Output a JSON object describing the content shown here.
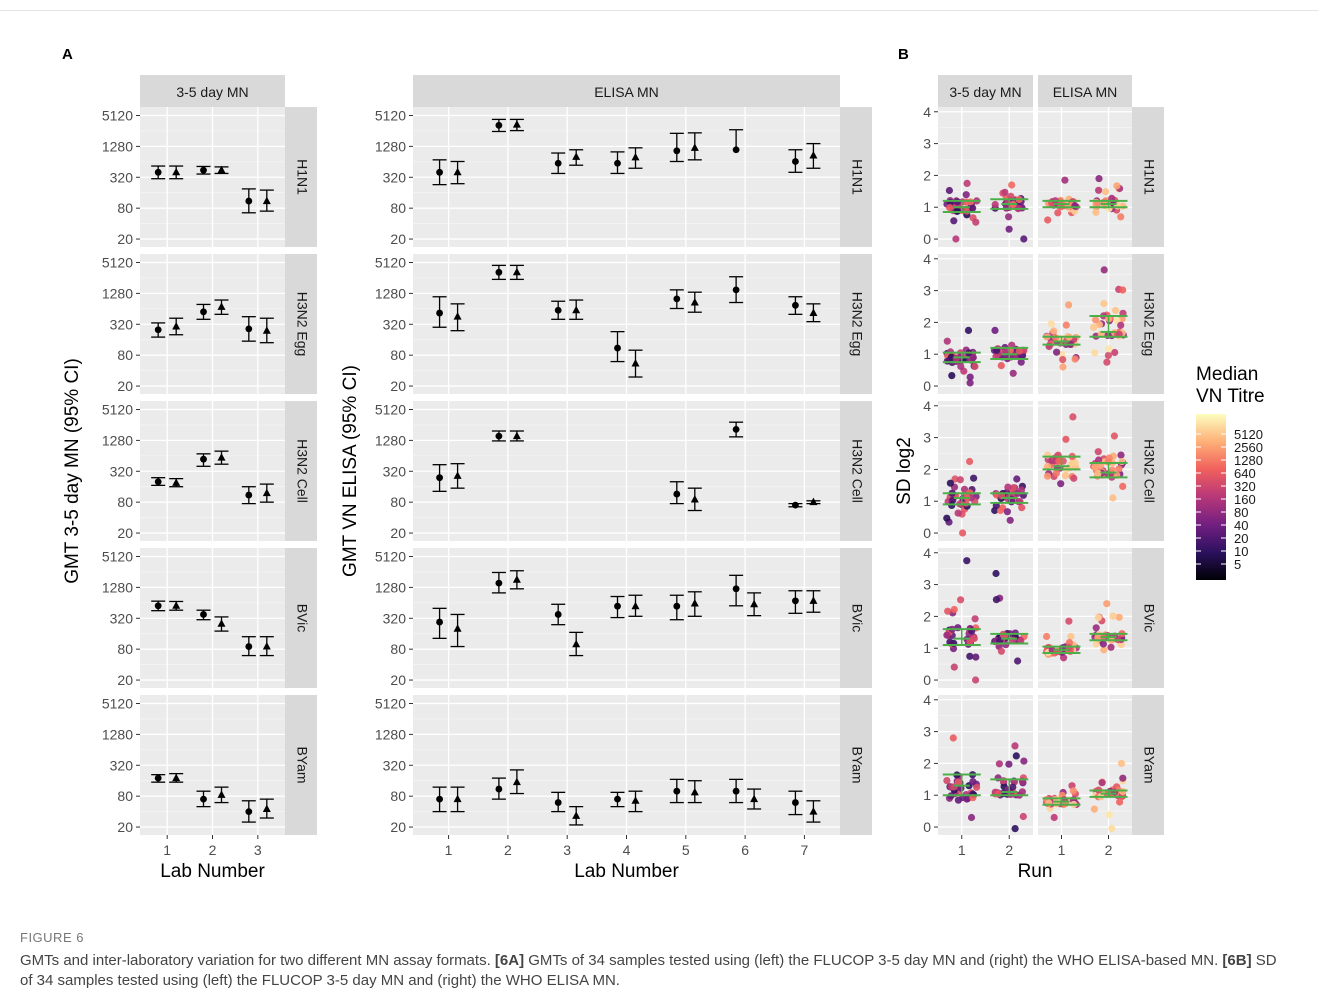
{
  "figure": {
    "panel_a_label": "A",
    "panel_b_label": "B",
    "caption_label": "FIGURE 6",
    "caption_parts": [
      {
        "text": "GMTs and inter-laboratory variation for two different MN assay formats. ",
        "bold": false
      },
      {
        "text": "[6A]",
        "bold": true
      },
      {
        "text": " GMTs of 34 samples tested using (left) the FLUCOP 3-5 day MN and (right) the WHO ELISA-based MN. ",
        "bold": false
      },
      {
        "text": "[6B]",
        "bold": true
      },
      {
        "text": " SD of 34 samples tested using (left) the FLUCOP 3-5 day MN and (right) the WHO ELISA MN.",
        "bold": false
      }
    ]
  },
  "chart_data": [
    {
      "type": "scatter",
      "panel": "A",
      "description": "Point estimates with 95% CI error bars; circle and triangle markers for two series per lab",
      "column_strips": [
        "3-5 day MN",
        "ELISA MN"
      ],
      "row_strips": [
        "H1N1",
        "H3N2 Egg",
        "H3N2 Cell",
        "BVic",
        "BYam"
      ],
      "ylabels": [
        "GMT 3-5 day MN (95% CI)",
        "GMT VN ELISA (95% CI)"
      ],
      "xlabel": "Lab Number",
      "y_scale": "log2",
      "y_ticks": [
        20,
        80,
        320,
        1280,
        5120
      ],
      "ylim": [
        14,
        7500
      ],
      "marker_series": [
        "circle",
        "triangle"
      ],
      "facets": {
        "3-5 day MN": {
          "labs": [
            1,
            2,
            3
          ],
          "H1N1": {
            "circle": [
              [
                400,
                300,
                530
              ],
              [
                440,
                370,
                520
              ],
              [
                110,
                65,
                190
              ]
            ],
            "triangle": [
              [
                400,
                300,
                530
              ],
              [
                440,
                380,
                510
              ],
              [
                110,
                70,
                180
              ]
            ]
          },
          "H3N2 Egg": {
            "circle": [
              [
                250,
                180,
                340
              ],
              [
                560,
                400,
                780
              ],
              [
                260,
                150,
                450
              ]
            ],
            "triangle": [
              [
                290,
                200,
                420
              ],
              [
                700,
                500,
                950
              ],
              [
                240,
                140,
                420
              ]
            ]
          },
          "H3N2 Cell": {
            "circle": [
              [
                200,
                170,
                240
              ],
              [
                550,
                400,
                700
              ],
              [
                110,
                75,
                160
              ]
            ],
            "triangle": [
              [
                190,
                160,
                230
              ],
              [
                590,
                440,
                790
              ],
              [
                120,
                80,
                180
              ]
            ]
          },
          "BVic": {
            "circle": [
              [
                560,
                450,
                690
              ],
              [
                380,
                300,
                460
              ],
              [
                90,
                60,
                140
              ]
            ],
            "triangle": [
              [
                560,
                460,
                680
              ],
              [
                250,
                180,
                340
              ],
              [
                90,
                60,
                140
              ]
            ]
          },
          "BYam": {
            "circle": [
              [
                180,
                150,
                210
              ],
              [
                70,
                50,
                100
              ],
              [
                40,
                25,
                65
              ]
            ],
            "triangle": [
              [
                180,
                150,
                220
              ],
              [
                85,
                60,
                120
              ],
              [
                45,
                30,
                70
              ]
            ]
          }
        },
        "ELISA MN": {
          "labs": [
            1,
            2,
            3,
            4,
            5,
            6,
            7
          ],
          "H1N1": {
            "circle": [
              [
                400,
                230,
                700
              ],
              [
                3300,
                2500,
                4300
              ],
              [
                600,
                380,
                950
              ],
              [
                600,
                380,
                1000
              ],
              [
                1050,
                650,
                2300
              ],
              [
                1100,
                null,
                2700
              ],
              [
                650,
                400,
                1100
              ]
            ],
            "triangle": [
              [
                400,
                240,
                650
              ],
              [
                3400,
                2600,
                4300
              ],
              [
                800,
                550,
                1100
              ],
              [
                780,
                480,
                1200
              ],
              [
                1200,
                700,
                2350
              ],
              null,
              [
                850,
                480,
                1450
              ]
            ]
          },
          "H3N2 Egg": {
            "circle": [
              [
                530,
                280,
                1100
              ],
              [
                3300,
                2400,
                4500
              ],
              [
                600,
                400,
                900
              ],
              [
                110,
                60,
                230
              ],
              [
                1000,
                650,
                1500
              ],
              [
                1500,
                850,
                2700
              ],
              [
                750,
                500,
                1100
              ]
            ],
            "triangle": [
              [
                450,
                240,
                800
              ],
              [
                3300,
                2400,
                4500
              ],
              [
                600,
                400,
                950
              ],
              [
                55,
                30,
                100
              ],
              [
                850,
                550,
                1350
              ],
              null,
              [
                530,
                360,
                800
              ]
            ]
          },
          "H3N2 Cell": {
            "circle": [
              [
                240,
                130,
                430
              ],
              [
                1550,
                1250,
                1950
              ],
              null,
              null,
              [
                115,
                75,
                200
              ],
              [
                2100,
                1500,
                2900
              ],
              [
                70,
                65,
                75
              ]
            ],
            "triangle": [
              [
                260,
                150,
                450
              ],
              [
                1550,
                1250,
                1950
              ],
              null,
              null,
              [
                90,
                55,
                150
              ],
              null,
              [
                80,
                75,
                85
              ]
            ]
          },
          "BVic": {
            "circle": [
              [
                270,
                130,
                500
              ],
              [
                1550,
                1000,
                2500
              ],
              [
                380,
                240,
                600
              ],
              [
                550,
                330,
                850
              ],
              [
                550,
                300,
                900
              ],
              [
                1200,
                560,
                2200
              ],
              [
                700,
                400,
                1100
              ]
            ],
            "triangle": [
              [
                200,
                90,
                380
              ],
              [
                1800,
                1200,
                2700
              ],
              [
                100,
                60,
                170
              ],
              [
                550,
                350,
                900
              ],
              [
                620,
                350,
                1050
              ],
              [
                600,
                360,
                1000
              ],
              [
                700,
                420,
                1100
              ]
            ]
          },
          "BYam": {
            "circle": [
              [
                70,
                40,
                120
              ],
              [
                110,
                70,
                180
              ],
              [
                60,
                40,
                95
              ],
              [
                70,
                50,
                95
              ],
              [
                100,
                60,
                170
              ],
              [
                100,
                60,
                170
              ],
              [
                60,
                35,
                100
              ]
            ],
            "triangle": [
              [
                70,
                40,
                120
              ],
              [
                150,
                90,
                260
              ],
              [
                33,
                22,
                50
              ],
              [
                65,
                40,
                100
              ],
              [
                95,
                60,
                160
              ],
              [
                70,
                45,
                110
              ],
              [
                40,
                25,
                65
              ]
            ]
          }
        }
      }
    },
    {
      "type": "scatter",
      "panel": "B",
      "description": "Jittered points per sample with green mean and quartile lines, colored by median VN titre",
      "column_strips": [
        "3-5 day MN",
        "ELISA MN"
      ],
      "row_strips": [
        "H1N1",
        "H3N2 Egg",
        "H3N2 Cell",
        "BVic",
        "BYam"
      ],
      "ylabel": "SD log2",
      "xlabel": "Run",
      "x_ticks": [
        1,
        2
      ],
      "y_ticks": [
        0,
        1,
        2,
        3,
        4
      ],
      "ylim": [
        -0.25,
        4.15
      ],
      "legend": {
        "title_lines": [
          "Median",
          "VN Titre"
        ],
        "labels": [
          "5120",
          "2560",
          "1280",
          "640",
          "320",
          "160",
          "80",
          "40",
          "20",
          "10",
          "5"
        ],
        "placement": "right",
        "colors": [
          "#fcfdbf",
          "#feb078",
          "#f1605d",
          "#b73779",
          "#721f81",
          "#2c115f",
          "#000004"
        ]
      },
      "summary_color": "#4daf4a",
      "facets": {
        "3-5 day MN": {
          "H1N1": {
            "run1": {
              "median": 1.0,
              "q1": 0.85,
              "q3": 1.2,
              "lo": 0.0,
              "hi": 1.75
            },
            "run2": {
              "median": 1.1,
              "q1": 0.95,
              "q3": 1.25,
              "lo": 0.0,
              "hi": 1.7
            }
          },
          "H3N2 Egg": {
            "run1": {
              "median": 0.9,
              "q1": 0.75,
              "q3": 1.05,
              "lo": 0.1,
              "hi": 1.75
            },
            "run2": {
              "median": 1.0,
              "q1": 0.85,
              "q3": 1.2,
              "lo": 0.4,
              "hi": 1.75
            }
          },
          "H3N2 Cell": {
            "run1": {
              "median": 1.1,
              "q1": 0.9,
              "q3": 1.25,
              "lo": 0.0,
              "hi": 2.25
            },
            "run2": {
              "median": 1.1,
              "q1": 0.95,
              "q3": 1.25,
              "lo": 0.4,
              "hi": 1.7
            }
          },
          "BVic": {
            "run1": {
              "median": 1.3,
              "q1": 1.1,
              "q3": 1.6,
              "lo": 0.0,
              "hi": 3.75
            },
            "run2": {
              "median": 1.3,
              "q1": 1.15,
              "q3": 1.45,
              "lo": 0.6,
              "hi": 3.35
            }
          },
          "BYam": {
            "run1": {
              "median": 1.3,
              "q1": 1.0,
              "q3": 1.65,
              "lo": 0.3,
              "hi": 2.8
            },
            "run2": {
              "median": 1.1,
              "q1": 1.0,
              "q3": 1.5,
              "lo": -0.05,
              "hi": 2.55
            }
          }
        },
        "ELISA MN": {
          "H1N1": {
            "run1": {
              "median": 1.1,
              "q1": 1.0,
              "q3": 1.2,
              "lo": 0.6,
              "hi": 1.85
            },
            "run2": {
              "median": 1.1,
              "q1": 1.0,
              "q3": 1.2,
              "lo": 0.7,
              "hi": 1.9
            }
          },
          "H3N2 Egg": {
            "run1": {
              "median": 1.4,
              "q1": 1.3,
              "q3": 1.55,
              "lo": 0.6,
              "hi": 2.55
            },
            "run2": {
              "median": 1.7,
              "q1": 1.55,
              "q3": 2.2,
              "lo": 0.75,
              "hi": 3.65
            }
          },
          "H3N2 Cell": {
            "run1": {
              "median": 2.1,
              "q1": 2.0,
              "q3": 2.4,
              "lo": 1.55,
              "hi": 3.65
            },
            "run2": {
              "median": 1.9,
              "q1": 1.75,
              "q3": 2.2,
              "lo": 1.1,
              "hi": 3.05
            }
          },
          "BVic": {
            "run1": {
              "median": 0.95,
              "q1": 0.85,
              "q3": 1.05,
              "lo": 0.7,
              "hi": 1.85
            },
            "run2": {
              "median": 1.35,
              "q1": 1.25,
              "q3": 1.45,
              "lo": 0.95,
              "hi": 2.4
            }
          },
          "BYam": {
            "run1": {
              "median": 0.8,
              "q1": 0.7,
              "q3": 0.9,
              "lo": 0.3,
              "hi": 1.3
            },
            "run2": {
              "median": 1.05,
              "q1": 0.95,
              "q3": 1.15,
              "lo": -0.05,
              "hi": 2.0
            }
          }
        }
      }
    }
  ]
}
